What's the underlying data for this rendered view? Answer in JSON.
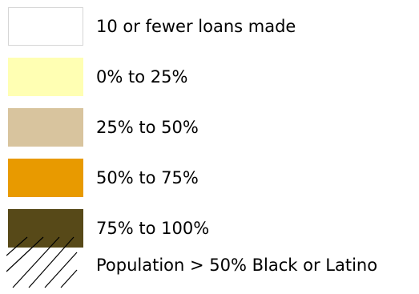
{
  "legend": {
    "items": [
      {
        "label": "10 or fewer loans made",
        "color": "#ffffff",
        "outlined": true
      },
      {
        "label": "0% to 25%",
        "color": "#ffffb3"
      },
      {
        "label": "25% to 50%",
        "color": "#d8c49e"
      },
      {
        "label": "50% to 75%",
        "color": "#e89a00"
      },
      {
        "label": "75% to 100%",
        "color": "#574918"
      }
    ],
    "overlay": {
      "label": "Population > 50% Black or Latino",
      "pattern": "diagonal-hatch"
    }
  }
}
